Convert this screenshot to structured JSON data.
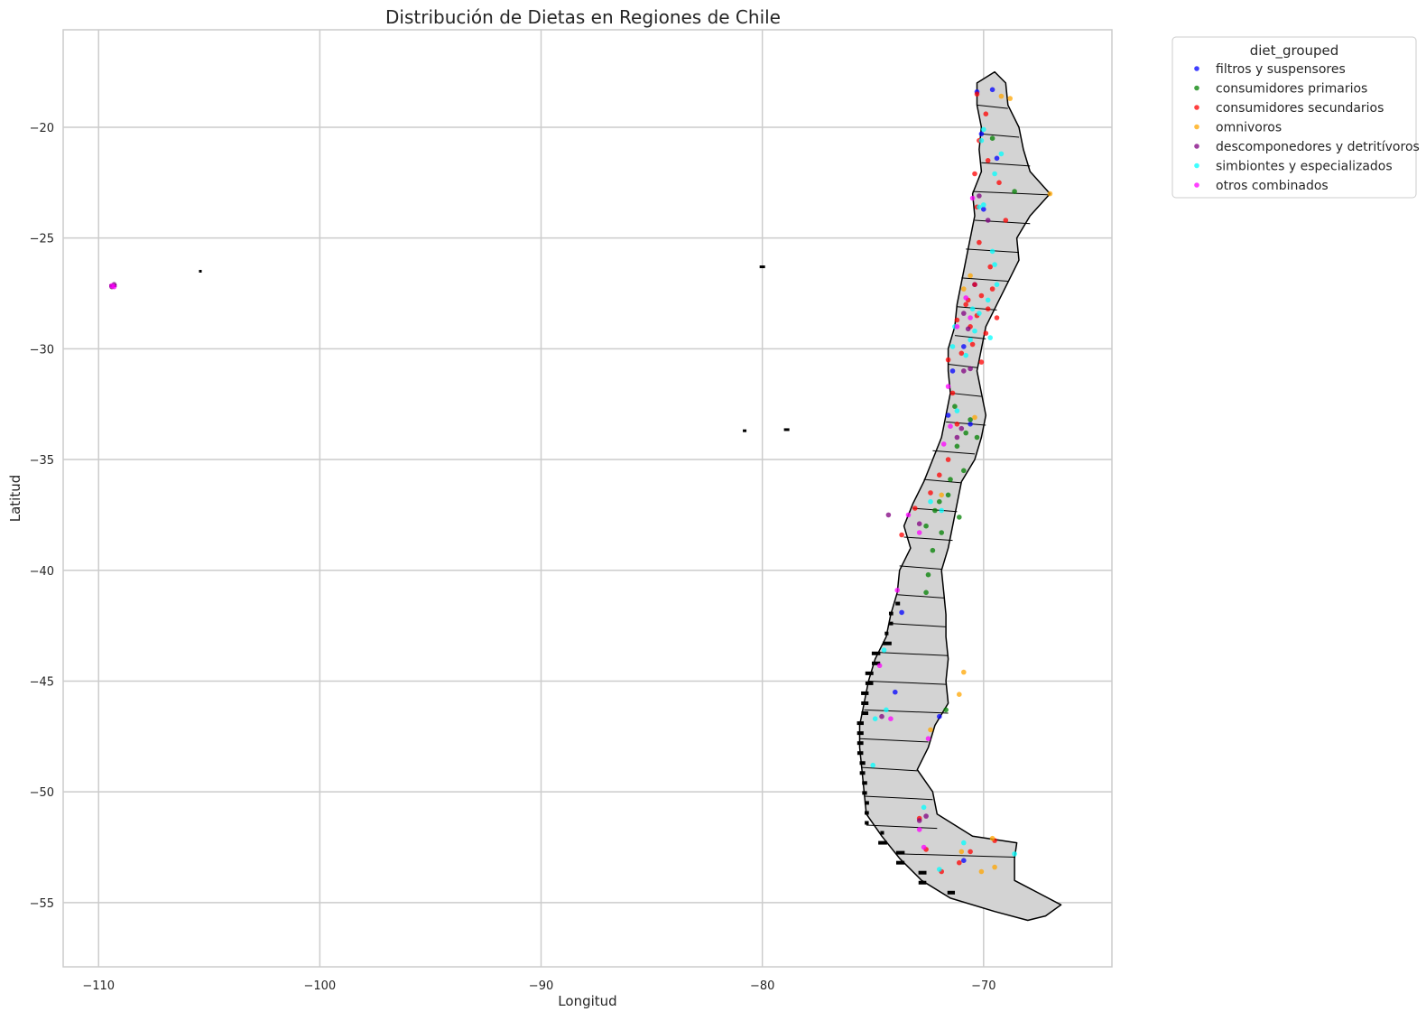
{
  "chart_data": {
    "type": "scatter",
    "title": "Distribución de Dietas en Regiones de Chile",
    "xlabel": "Longitud",
    "ylabel": "Latitud",
    "xlim": [
      -111.6,
      -64.2
    ],
    "ylim": [
      -57.9,
      -15.6
    ],
    "xticks": [
      -110,
      -100,
      -90,
      -80,
      -70
    ],
    "yticks": [
      -20,
      -25,
      -30,
      -35,
      -40,
      -45,
      -50,
      -55
    ],
    "xtick_labels": [
      "−110",
      "−100",
      "−90",
      "−80",
      "−70"
    ],
    "ytick_labels": [
      "−20",
      "−25",
      "−30",
      "−35",
      "−40",
      "−45",
      "−50",
      "−55"
    ],
    "grid": true,
    "legend_title": "diet_grouped",
    "legend_position": "upper-right-outside",
    "basemap": "Chile regions, grey fill with black borders",
    "basemap_fill": "#d3d3d3",
    "basemap_stroke": "#000000",
    "series": [
      {
        "name": "filtros y suspensores",
        "color": "#0000ff",
        "points": [
          [
            -70.3,
            -18.4
          ],
          [
            -69.6,
            -18.3
          ],
          [
            -70.1,
            -20.3
          ],
          [
            -69.4,
            -21.4
          ],
          [
            -70.0,
            -23.7
          ],
          [
            -70.4,
            -27.1
          ],
          [
            -70.9,
            -29.9
          ],
          [
            -71.4,
            -31.0
          ],
          [
            -70.6,
            -33.4
          ],
          [
            -71.6,
            -33.0
          ],
          [
            -73.7,
            -41.9
          ],
          [
            -74.0,
            -45.5
          ],
          [
            -72.0,
            -46.6
          ],
          [
            -70.9,
            -53.1
          ]
        ]
      },
      {
        "name": "consumidores primarios",
        "color": "#008000",
        "points": [
          [
            -69.6,
            -20.5
          ],
          [
            -68.6,
            -22.9
          ],
          [
            -70.6,
            -33.2
          ],
          [
            -70.3,
            -34.0
          ],
          [
            -71.2,
            -34.4
          ],
          [
            -70.9,
            -35.5
          ],
          [
            -71.6,
            -36.6
          ],
          [
            -72.2,
            -37.3
          ],
          [
            -72.6,
            -38.0
          ],
          [
            -71.9,
            -38.3
          ],
          [
            -72.3,
            -39.1
          ],
          [
            -72.5,
            -40.2
          ],
          [
            -72.6,
            -41.0
          ],
          [
            -71.5,
            -35.9
          ],
          [
            -71.3,
            -32.6
          ],
          [
            -70.8,
            -33.8
          ],
          [
            -71.7,
            -46.3
          ],
          [
            -72.0,
            -36.9
          ],
          [
            -71.1,
            -37.6
          ]
        ]
      },
      {
        "name": "consumidores secundarios",
        "color": "#ff0000",
        "points": [
          [
            -70.3,
            -18.5
          ],
          [
            -69.9,
            -19.4
          ],
          [
            -70.2,
            -20.6
          ],
          [
            -69.8,
            -21.5
          ],
          [
            -70.4,
            -22.1
          ],
          [
            -69.3,
            -22.5
          ],
          [
            -70.3,
            -23.6
          ],
          [
            -69.0,
            -24.2
          ],
          [
            -70.2,
            -25.2
          ],
          [
            -69.7,
            -26.3
          ],
          [
            -70.4,
            -27.1
          ],
          [
            -69.6,
            -27.3
          ],
          [
            -70.1,
            -27.6
          ],
          [
            -70.8,
            -28.0
          ],
          [
            -69.8,
            -28.2
          ],
          [
            -70.3,
            -28.5
          ],
          [
            -71.2,
            -28.7
          ],
          [
            -70.6,
            -29.0
          ],
          [
            -69.9,
            -29.3
          ],
          [
            -70.5,
            -29.8
          ],
          [
            -71.0,
            -30.2
          ],
          [
            -70.1,
            -30.6
          ],
          [
            -71.4,
            -32.0
          ],
          [
            -71.2,
            -33.4
          ],
          [
            -71.6,
            -35.0
          ],
          [
            -72.0,
            -35.7
          ],
          [
            -72.4,
            -36.5
          ],
          [
            -73.1,
            -37.2
          ],
          [
            -73.7,
            -38.4
          ],
          [
            -72.9,
            -51.2
          ],
          [
            -72.6,
            -52.6
          ],
          [
            -71.1,
            -53.2
          ],
          [
            -71.9,
            -53.6
          ],
          [
            -69.5,
            -52.2
          ],
          [
            -70.6,
            -52.7
          ],
          [
            -71.6,
            -30.5
          ],
          [
            -70.7,
            -27.8
          ],
          [
            -69.4,
            -28.6
          ]
        ]
      },
      {
        "name": "omnivoros",
        "color": "#ffa500",
        "points": [
          [
            -69.2,
            -18.6
          ],
          [
            -68.8,
            -18.7
          ],
          [
            -67.0,
            -23.0
          ],
          [
            -70.6,
            -26.7
          ],
          [
            -70.9,
            -27.3
          ],
          [
            -70.4,
            -33.1
          ],
          [
            -71.9,
            -36.6
          ],
          [
            -70.9,
            -44.6
          ],
          [
            -71.1,
            -45.6
          ],
          [
            -72.4,
            -47.2
          ],
          [
            -71.0,
            -52.7
          ],
          [
            -69.6,
            -52.1
          ],
          [
            -69.5,
            -53.4
          ],
          [
            -70.1,
            -53.6
          ]
        ]
      },
      {
        "name": "descomponedores y detritívoros",
        "color": "#800080",
        "points": [
          [
            -109.4,
            -27.2
          ],
          [
            -109.3,
            -27.1
          ],
          [
            -70.2,
            -23.1
          ],
          [
            -69.8,
            -24.2
          ],
          [
            -70.9,
            -28.4
          ],
          [
            -70.7,
            -29.1
          ],
          [
            -70.6,
            -30.9
          ],
          [
            -71.0,
            -33.6
          ],
          [
            -72.9,
            -37.9
          ],
          [
            -74.3,
            -37.5
          ],
          [
            -74.6,
            -46.6
          ],
          [
            -72.6,
            -51.1
          ],
          [
            -72.9,
            -51.3
          ],
          [
            -70.9,
            -31.0
          ],
          [
            -71.2,
            -34.0
          ]
        ]
      },
      {
        "name": "simbiontes y especializados",
        "color": "#00ffff",
        "points": [
          [
            -70.0,
            -20.1
          ],
          [
            -70.1,
            -20.6
          ],
          [
            -69.2,
            -21.2
          ],
          [
            -69.5,
            -22.1
          ],
          [
            -70.0,
            -23.5
          ],
          [
            -70.2,
            -23.6
          ],
          [
            -69.6,
            -25.6
          ],
          [
            -69.5,
            -26.2
          ],
          [
            -70.5,
            -28.2
          ],
          [
            -69.8,
            -27.8
          ],
          [
            -70.2,
            -28.4
          ],
          [
            -71.3,
            -29.0
          ],
          [
            -70.4,
            -29.2
          ],
          [
            -69.7,
            -29.5
          ],
          [
            -70.6,
            -29.6
          ],
          [
            -71.4,
            -29.9
          ],
          [
            -71.2,
            -32.8
          ],
          [
            -72.4,
            -36.9
          ],
          [
            -71.9,
            -37.3
          ],
          [
            -74.5,
            -43.6
          ],
          [
            -74.4,
            -46.3
          ],
          [
            -74.9,
            -46.7
          ],
          [
            -75.0,
            -48.8
          ],
          [
            -72.7,
            -50.7
          ],
          [
            -72.0,
            -53.5
          ],
          [
            -68.6,
            -52.8
          ],
          [
            -70.9,
            -52.3
          ],
          [
            -69.4,
            -27.1
          ],
          [
            -70.8,
            -30.3
          ]
        ]
      },
      {
        "name": "otros combinados",
        "color": "#ff00ff",
        "points": [
          [
            -109.3,
            -27.2
          ],
          [
            -109.4,
            -27.15
          ],
          [
            -70.5,
            -23.2
          ],
          [
            -71.2,
            -29.0
          ],
          [
            -70.6,
            -28.6
          ],
          [
            -71.6,
            -31.7
          ],
          [
            -71.5,
            -33.5
          ],
          [
            -71.8,
            -34.3
          ],
          [
            -73.4,
            -37.5
          ],
          [
            -72.9,
            -38.3
          ],
          [
            -73.9,
            -40.9
          ],
          [
            -74.7,
            -44.3
          ],
          [
            -74.2,
            -46.7
          ],
          [
            -72.5,
            -47.6
          ],
          [
            -72.9,
            -51.7
          ],
          [
            -72.7,
            -52.5
          ],
          [
            -70.8,
            -27.7
          ]
        ]
      }
    ]
  }
}
